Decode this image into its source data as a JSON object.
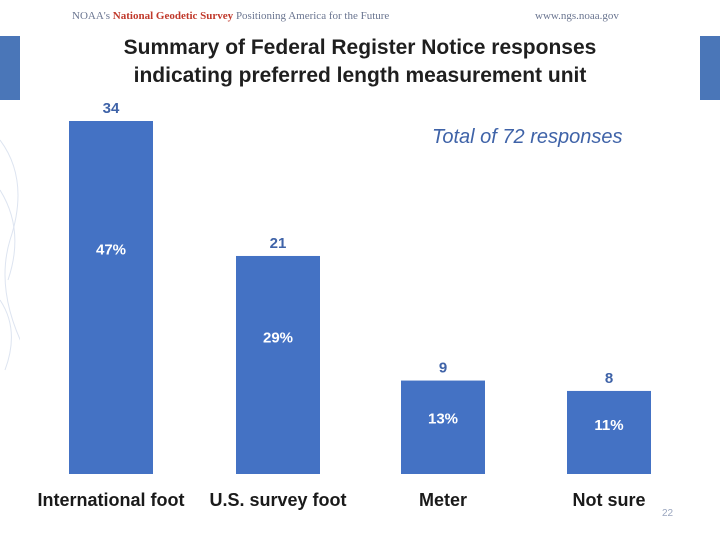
{
  "header": {
    "org_prefix": "NOAA's",
    "org_name": "National Geodetic Survey",
    "tagline": "Positioning America for the Future",
    "website": "www.ngs.noaa.gov"
  },
  "slide": {
    "title_line1": "Summary of Federal Register Notice responses",
    "title_line2": "indicating preferred length measurement unit",
    "total_note": "Total of 72 responses",
    "page_number": "22"
  },
  "colors": {
    "bar": "#4472c4",
    "count_label": "#3f63a8",
    "percent_label": "#ffffff",
    "band": "#4a76b8"
  },
  "chart_data": {
    "type": "bar",
    "title": "Summary of Federal Register Notice responses indicating preferred length measurement unit",
    "categories": [
      "International foot",
      "U.S. survey foot",
      "Meter",
      "Not sure"
    ],
    "values": [
      34,
      21,
      9,
      8
    ],
    "percent_labels": [
      "47%",
      "29%",
      "13%",
      "11%"
    ],
    "ylim": [
      0,
      34
    ],
    "xlabel": "",
    "ylabel": "",
    "grid": false,
    "annotation": "Total of 72 responses"
  }
}
